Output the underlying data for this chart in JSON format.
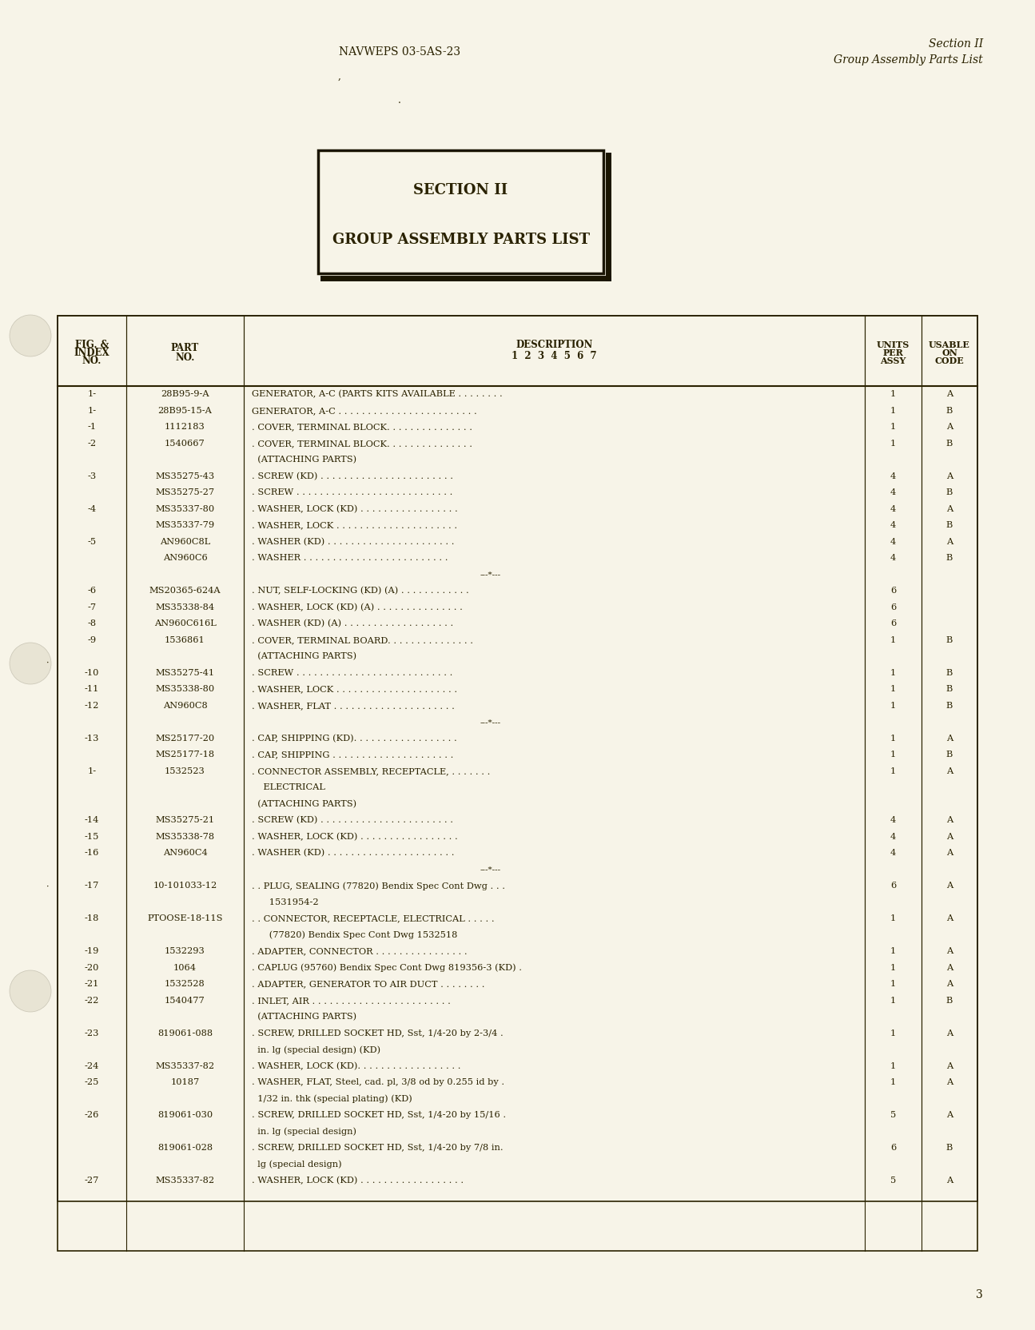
{
  "bg_color": "#f7f4e8",
  "text_color": "#2a2200",
  "header_left": "NAVWEPS 03-5AS-23",
  "header_right_line1": "Section II",
  "header_right_line2": "Group Assembly Parts List",
  "small_mark1": "’",
  "small_mark2": ".",
  "section_title_line1": "SECTION II",
  "section_title_line2": "GROUP ASSEMBLY PARTS LIST",
  "footer_page": "3",
  "rows": [
    {
      "fig": "1-",
      "part": "28B95-9-A",
      "desc": "GENERATOR, A-C (PARTS KITS AVAILABLE . . . . . . . .",
      "units": "1",
      "code": "A"
    },
    {
      "fig": "1-",
      "part": "28B95-15-A",
      "desc": "GENERATOR, A-C . . . . . . . . . . . . . . . . . . . . . . . .",
      "units": "1",
      "code": "B"
    },
    {
      "fig": "-1",
      "part": "1112183",
      "desc": ". COVER, TERMINAL BLOCK. . . . . . . . . . . . . . .",
      "units": "1",
      "code": "A"
    },
    {
      "fig": "-2",
      "part": "1540667",
      "desc": ". COVER, TERMINAL BLOCK. . . . . . . . . . . . . . .",
      "units": "1",
      "code": "B"
    },
    {
      "fig": "",
      "part": "",
      "desc": "  (ATTACHING PARTS)",
      "units": "",
      "code": ""
    },
    {
      "fig": "-3",
      "part": "MS35275-43",
      "desc": ". SCREW (KD) . . . . . . . . . . . . . . . . . . . . . . .",
      "units": "4",
      "code": "A"
    },
    {
      "fig": "",
      "part": "MS35275-27",
      "desc": ". SCREW . . . . . . . . . . . . . . . . . . . . . . . . . . .",
      "units": "4",
      "code": "B"
    },
    {
      "fig": "-4",
      "part": "MS35337-80",
      "desc": ". WASHER, LOCK (KD) . . . . . . . . . . . . . . . . .",
      "units": "4",
      "code": "A"
    },
    {
      "fig": "",
      "part": "MS35337-79",
      "desc": ". WASHER, LOCK . . . . . . . . . . . . . . . . . . . . .",
      "units": "4",
      "code": "B"
    },
    {
      "fig": "-5",
      "part": "AN960C8L",
      "desc": ". WASHER (KD) . . . . . . . . . . . . . . . . . . . . . .",
      "units": "4",
      "code": "A"
    },
    {
      "fig": "",
      "part": "AN960C6",
      "desc": ". WASHER . . . . . . . . . . . . . . . . . . . . . . . . .",
      "units": "4",
      "code": "B"
    },
    {
      "fig": "SEP",
      "part": "",
      "desc": "",
      "units": "",
      "code": ""
    },
    {
      "fig": "-6",
      "part": "MS20365-624A",
      "desc": ". NUT, SELF-LOCKING (KD) (A) . . . . . . . . . . . .",
      "units": "6",
      "code": ""
    },
    {
      "fig": "-7",
      "part": "MS35338-84",
      "desc": ". WASHER, LOCK (KD) (A) . . . . . . . . . . . . . . .",
      "units": "6",
      "code": ""
    },
    {
      "fig": "-8",
      "part": "AN960C616L",
      "desc": ". WASHER (KD) (A) . . . . . . . . . . . . . . . . . . .",
      "units": "6",
      "code": ""
    },
    {
      "fig": "-9",
      "part": "1536861",
      "desc": ". COVER, TERMINAL BOARD. . . . . . . . . . . . . . .",
      "units": "1",
      "code": "B"
    },
    {
      "fig": "",
      "part": "",
      "desc": "  (ATTACHING PARTS)",
      "units": "",
      "code": ""
    },
    {
      "fig": "-10",
      "part": "MS35275-41",
      "desc": ". SCREW . . . . . . . . . . . . . . . . . . . . . . . . . . .",
      "units": "1",
      "code": "B"
    },
    {
      "fig": "-11",
      "part": "MS35338-80",
      "desc": ". WASHER, LOCK . . . . . . . . . . . . . . . . . . . . .",
      "units": "1",
      "code": "B"
    },
    {
      "fig": "-12",
      "part": "AN960C8",
      "desc": ". WASHER, FLAT . . . . . . . . . . . . . . . . . . . . .",
      "units": "1",
      "code": "B"
    },
    {
      "fig": "SEP",
      "part": "",
      "desc": "",
      "units": "",
      "code": ""
    },
    {
      "fig": "-13",
      "part": "MS25177-20",
      "desc": ". CAP, SHIPPING (KD). . . . . . . . . . . . . . . . . .",
      "units": "1",
      "code": "A"
    },
    {
      "fig": "",
      "part": "MS25177-18",
      "desc": ". CAP, SHIPPING . . . . . . . . . . . . . . . . . . . . .",
      "units": "1",
      "code": "B"
    },
    {
      "fig": "1-",
      "part": "1532523",
      "desc": ". CONNECTOR ASSEMBLY, RECEPTACLE, . . . . . . .",
      "units": "1",
      "code": "A"
    },
    {
      "fig": "",
      "part": "",
      "desc": "    ELECTRICAL",
      "units": "",
      "code": ""
    },
    {
      "fig": "",
      "part": "",
      "desc": "  (ATTACHING PARTS)",
      "units": "",
      "code": ""
    },
    {
      "fig": "-14",
      "part": "MS35275-21",
      "desc": ". SCREW (KD) . . . . . . . . . . . . . . . . . . . . . . .",
      "units": "4",
      "code": "A"
    },
    {
      "fig": "-15",
      "part": "MS35338-78",
      "desc": ". WASHER, LOCK (KD) . . . . . . . . . . . . . . . . .",
      "units": "4",
      "code": "A"
    },
    {
      "fig": "-16",
      "part": "AN960C4",
      "desc": ". WASHER (KD) . . . . . . . . . . . . . . . . . . . . . .",
      "units": "4",
      "code": "A"
    },
    {
      "fig": "SEP",
      "part": "",
      "desc": "",
      "units": "",
      "code": ""
    },
    {
      "fig": "-17",
      "part": "10-101033-12",
      "desc": ". . PLUG, SEALING (77820) Bendix Spec Cont Dwg . . .",
      "units": "6",
      "code": "A"
    },
    {
      "fig": "",
      "part": "",
      "desc": "      1531954-2",
      "units": "",
      "code": ""
    },
    {
      "fig": "-18",
      "part": "PTOOSE-18-11S",
      "desc": ". . CONNECTOR, RECEPTACLE, ELECTRICAL . . . . .",
      "units": "1",
      "code": "A"
    },
    {
      "fig": "",
      "part": "",
      "desc": "      (77820) Bendix Spec Cont Dwg 1532518",
      "units": "",
      "code": ""
    },
    {
      "fig": "-19",
      "part": "1532293",
      "desc": ". ADAPTER, CONNECTOR . . . . . . . . . . . . . . . .",
      "units": "1",
      "code": "A"
    },
    {
      "fig": "-20",
      "part": "1064",
      "desc": ". CAPLUG (95760) Bendix Spec Cont Dwg 819356-3 (KD) .",
      "units": "1",
      "code": "A"
    },
    {
      "fig": "-21",
      "part": "1532528",
      "desc": ". ADAPTER, GENERATOR TO AIR DUCT . . . . . . . .",
      "units": "1",
      "code": "A"
    },
    {
      "fig": "-22",
      "part": "1540477",
      "desc": ". INLET, AIR . . . . . . . . . . . . . . . . . . . . . . . .",
      "units": "1",
      "code": "B"
    },
    {
      "fig": "",
      "part": "",
      "desc": "  (ATTACHING PARTS)",
      "units": "",
      "code": ""
    },
    {
      "fig": "-23",
      "part": "819061-088",
      "desc": ". SCREW, DRILLED SOCKET HD, Sst, 1/4-20 by 2-3/4 .",
      "units": "1",
      "code": "A"
    },
    {
      "fig": "",
      "part": "",
      "desc": "  in. lg (special design) (KD)",
      "units": "",
      "code": ""
    },
    {
      "fig": "-24",
      "part": "MS35337-82",
      "desc": ". WASHER, LOCK (KD). . . . . . . . . . . . . . . . . .",
      "units": "1",
      "code": "A"
    },
    {
      "fig": "-25",
      "part": "10187",
      "desc": ". WASHER, FLAT, Steel, cad. pl, 3/8 od by 0.255 id by .",
      "units": "1",
      "code": "A"
    },
    {
      "fig": "",
      "part": "",
      "desc": "  1/32 in. thk (special plating) (KD)",
      "units": "",
      "code": ""
    },
    {
      "fig": "-26",
      "part": "819061-030",
      "desc": ". SCREW, DRILLED SOCKET HD, Sst, 1/4-20 by 15/16 .",
      "units": "5",
      "code": "A"
    },
    {
      "fig": "",
      "part": "",
      "desc": "  in. lg (special design)",
      "units": "",
      "code": ""
    },
    {
      "fig": "",
      "part": "819061-028",
      "desc": ". SCREW, DRILLED SOCKET HD, Sst, 1/4-20 by 7/8 in.",
      "units": "6",
      "code": "B"
    },
    {
      "fig": "",
      "part": "",
      "desc": "  lg (special design)",
      "units": "",
      "code": ""
    },
    {
      "fig": "-27",
      "part": "MS35337-82",
      "desc": ". WASHER, LOCK (KD) . . . . . . . . . . . . . . . . . .",
      "units": "5",
      "code": "A"
    }
  ]
}
